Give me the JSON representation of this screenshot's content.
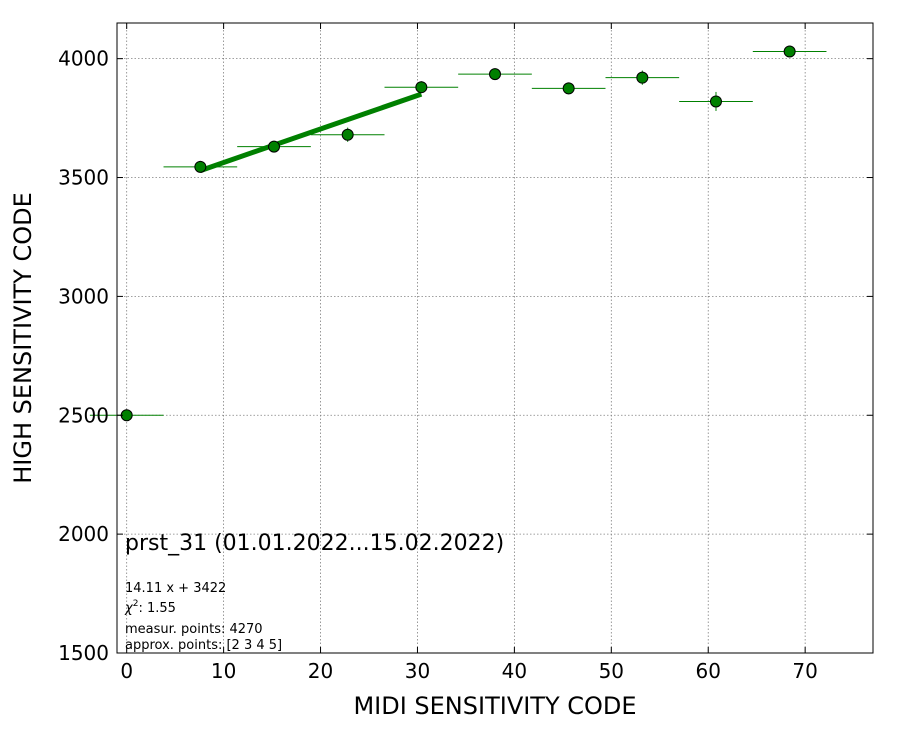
{
  "chart_data": {
    "type": "scatter",
    "title": "prst_31 (01.01.2022...15.02.2022)",
    "xlabel": "MIDI SENSITIVITY CODE",
    "ylabel": "HIGH SENSITIVITY CODE",
    "xlim": [
      -1,
      77
    ],
    "ylim": [
      1500,
      4150
    ],
    "xticks": [
      0,
      10,
      20,
      30,
      40,
      50,
      60,
      70
    ],
    "yticks": [
      1500,
      2000,
      2500,
      3000,
      3500,
      4000
    ],
    "grid": true,
    "colors": {
      "marker_fill": "#008000",
      "marker_edge": "#000000",
      "error_bar": "#008000",
      "fit_line": "#008000",
      "grid": "#808080"
    },
    "series": [
      {
        "x": [
          0,
          7.6,
          15.2,
          22.8,
          30.4,
          38.0,
          45.6,
          53.2,
          60.8,
          68.4
        ],
        "y": [
          2500,
          3545,
          3630,
          3680,
          3880,
          3935,
          3875,
          3920,
          3820,
          4030
        ],
        "xerr": [
          3.8,
          3.8,
          3.8,
          3.8,
          3.8,
          3.8,
          3.8,
          3.8,
          3.8,
          3.8
        ],
        "yerr": [
          0,
          25,
          22,
          30,
          25,
          20,
          25,
          30,
          40,
          15
        ]
      }
    ],
    "fit": {
      "slope": 14.11,
      "intercept": 3422,
      "x_range": [
        7.6,
        30.4
      ]
    },
    "annotations": [
      "14.11 x + 3422",
      ": 1.55",
      "measur. points: 4270",
      "approx. points: [2 3 4 5]"
    ],
    "chi_symbol": "χ",
    "chi_exp": "2"
  }
}
